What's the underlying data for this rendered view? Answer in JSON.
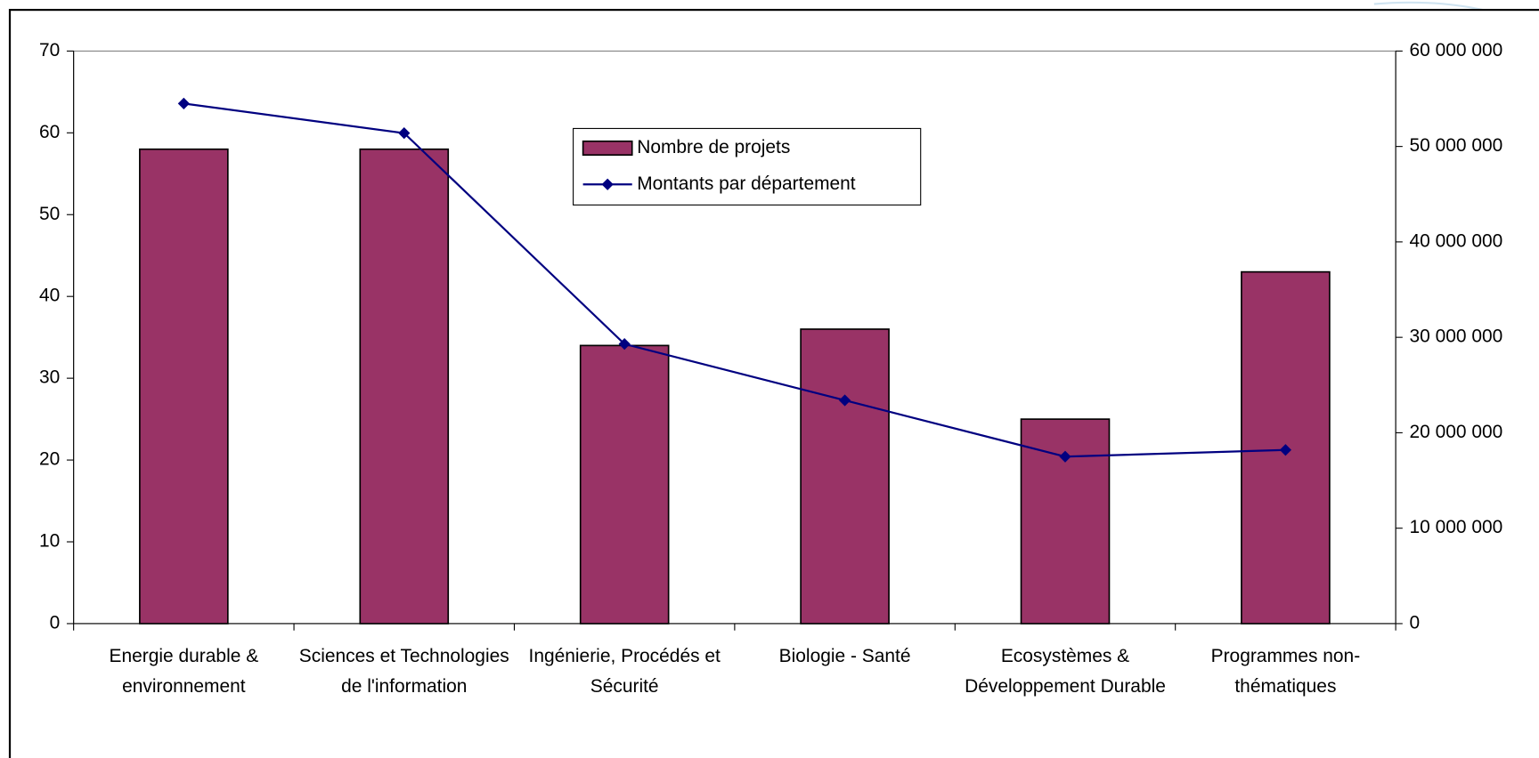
{
  "chart_data": {
    "type": "bar",
    "categories": [
      "Energie durable & environnement",
      "Sciences et Technologies de l'information",
      "Ingénierie, Procédés et Sécurité",
      "Biologie - Santé",
      "Ecosystèmes & Développement Durable",
      "Programmes non-thématiques"
    ],
    "series": [
      {
        "name": "Nombre de projets",
        "type": "bar",
        "color": "#993366",
        "values": [
          58,
          58,
          34,
          36,
          25,
          43
        ]
      },
      {
        "name": "Montants par département",
        "type": "line",
        "axis": "y2",
        "color": "#000080",
        "values": [
          54500000,
          51400000,
          29300000,
          23400000,
          17500000,
          18200000
        ]
      }
    ],
    "ylim": [
      0,
      70
    ],
    "yticks": [
      0,
      10,
      20,
      30,
      40,
      50,
      60,
      70
    ],
    "y2lim": [
      0,
      60000000
    ],
    "y2ticks": [
      {
        "value": 0,
        "label": "0"
      },
      {
        "value": 10000000,
        "label": "10 000 000"
      },
      {
        "value": 20000000,
        "label": "20 000 000"
      },
      {
        "value": 30000000,
        "label": "30 000 000"
      },
      {
        "value": 40000000,
        "label": "40 000 000"
      },
      {
        "value": 50000000,
        "label": "50 000 000"
      },
      {
        "value": 60000000,
        "label": "60 000 000"
      }
    ],
    "legend": "top-center"
  }
}
